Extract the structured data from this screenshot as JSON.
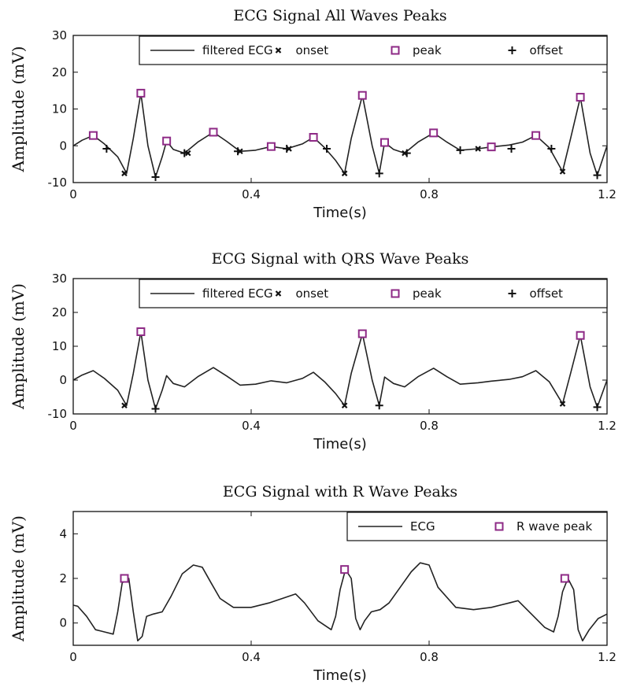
{
  "chart_data": [
    {
      "type": "line",
      "title": "ECG Signal All Waves Peaks",
      "xlabel": "Time(s)",
      "ylabel": "Amplitude (mV)",
      "xlim": [
        0,
        1.2
      ],
      "ylim": [
        -10,
        30
      ],
      "xticks": [
        "0",
        "0.4",
        "0.8",
        "1.2"
      ],
      "yticks": [
        "-10",
        "0",
        "10",
        "20",
        "30"
      ],
      "legend_position": "top-right",
      "legend": [
        "filtered ECG",
        "onset",
        "peak",
        "offset"
      ],
      "series": [
        {
          "name": "filtered ECG",
          "x": [
            0,
            0.02,
            0.045,
            0.07,
            0.1,
            0.12,
            0.135,
            0.152,
            0.168,
            0.185,
            0.2,
            0.21,
            0.225,
            0.25,
            0.28,
            0.315,
            0.345,
            0.375,
            0.41,
            0.445,
            0.48,
            0.515,
            0.54,
            0.565,
            0.59,
            0.61,
            0.625,
            0.65,
            0.672,
            0.688,
            0.7,
            0.72,
            0.745,
            0.775,
            0.81,
            0.84,
            0.87,
            0.91,
            0.94,
            0.98,
            1.01,
            1.04,
            1.07,
            1.1,
            1.118,
            1.14,
            1.162,
            1.178,
            1.2
          ],
          "y": [
            0,
            1.5,
            2.8,
            0.5,
            -3,
            -7.5,
            2,
            14.3,
            0,
            -8.5,
            -3,
            1.3,
            -1,
            -2,
            1,
            3.7,
            1.2,
            -1.5,
            -1.2,
            -0.2,
            -0.8,
            0.5,
            2.3,
            -0.5,
            -4,
            -7.5,
            2,
            13.7,
            0,
            -7.5,
            0.9,
            -1,
            -2,
            1,
            3.5,
            1,
            -1.2,
            -0.8,
            -0.3,
            0.2,
            1,
            2.8,
            -0.5,
            -7,
            2,
            13.2,
            -2,
            -8,
            0
          ]
        },
        {
          "name": "onset",
          "x": [
            0.115,
            0.258,
            0.375,
            0.485,
            0.61,
            0.745,
            0.91,
            1.1
          ],
          "y": [
            -7.5,
            -2,
            -1.5,
            -0.8,
            -7.5,
            -2,
            -0.8,
            -7
          ]
        },
        {
          "name": "peak",
          "x": [
            0.045,
            0.152,
            0.21,
            0.315,
            0.445,
            0.54,
            0.65,
            0.7,
            0.81,
            0.94,
            1.04,
            1.14
          ],
          "y": [
            2.8,
            14.3,
            1.3,
            3.7,
            -0.2,
            2.3,
            13.7,
            0.9,
            3.5,
            -0.3,
            2.8,
            13.2
          ]
        },
        {
          "name": "offset",
          "x": [
            0.075,
            0.185,
            0.25,
            0.37,
            0.48,
            0.57,
            0.688,
            0.75,
            0.87,
            0.985,
            1.075,
            1.178
          ],
          "y": [
            -0.8,
            -8.5,
            -2,
            -1.5,
            -0.8,
            -0.8,
            -7.5,
            -2,
            -1.2,
            -0.8,
            -0.8,
            -8
          ]
        }
      ]
    },
    {
      "type": "line",
      "title": "ECG Signal with QRS Wave Peaks",
      "xlabel": "Time(s)",
      "ylabel": "Amplitude (mV)",
      "xlim": [
        0,
        1.2
      ],
      "ylim": [
        -10,
        30
      ],
      "xticks": [
        "0",
        "0.4",
        "0.8",
        "1.2"
      ],
      "yticks": [
        "-10",
        "0",
        "10",
        "20",
        "30"
      ],
      "legend_position": "top-right",
      "legend": [
        "filtered ECG",
        "onset",
        "peak",
        "offset"
      ],
      "series": [
        {
          "name": "filtered ECG",
          "x": [
            0,
            0.02,
            0.045,
            0.07,
            0.1,
            0.12,
            0.135,
            0.152,
            0.168,
            0.185,
            0.2,
            0.21,
            0.225,
            0.25,
            0.28,
            0.315,
            0.345,
            0.375,
            0.41,
            0.445,
            0.48,
            0.515,
            0.54,
            0.565,
            0.59,
            0.61,
            0.625,
            0.65,
            0.672,
            0.688,
            0.7,
            0.72,
            0.745,
            0.775,
            0.81,
            0.84,
            0.87,
            0.91,
            0.94,
            0.98,
            1.01,
            1.04,
            1.07,
            1.1,
            1.118,
            1.14,
            1.162,
            1.178,
            1.2
          ],
          "y": [
            0,
            1.5,
            2.8,
            0.5,
            -3,
            -7.5,
            2,
            14.3,
            0,
            -8.5,
            -3,
            1.3,
            -1,
            -2,
            1,
            3.7,
            1.2,
            -1.5,
            -1.2,
            -0.2,
            -0.8,
            0.5,
            2.3,
            -0.5,
            -4,
            -7.5,
            2,
            13.7,
            0,
            -7.5,
            0.9,
            -1,
            -2,
            1,
            3.5,
            1,
            -1.2,
            -0.8,
            -0.3,
            0.2,
            1,
            2.8,
            -0.5,
            -7,
            2,
            13.2,
            -2,
            -8,
            0
          ]
        },
        {
          "name": "onset",
          "x": [
            0.115,
            0.61,
            1.1
          ],
          "y": [
            -7.5,
            -7.5,
            -7
          ]
        },
        {
          "name": "peak",
          "x": [
            0.152,
            0.65,
            1.14
          ],
          "y": [
            14.3,
            13.7,
            13.2
          ]
        },
        {
          "name": "offset",
          "x": [
            0.185,
            0.688,
            1.178
          ],
          "y": [
            -8.5,
            -7.5,
            -8
          ]
        }
      ]
    },
    {
      "type": "line",
      "title": "ECG Signal with R Wave Peaks",
      "xlabel": "Time(s)",
      "ylabel": "Amplitude (mV)",
      "xlim": [
        0,
        1.2
      ],
      "ylim": [
        -1,
        5
      ],
      "xticks": [
        "0",
        "0.4",
        "0.8",
        "1.2"
      ],
      "yticks": [
        "0",
        "2",
        "4"
      ],
      "legend_position": "top-right",
      "legend": [
        "ECG",
        "R wave peak"
      ],
      "series": [
        {
          "name": "ECG",
          "x": [
            0,
            0.01,
            0.03,
            0.05,
            0.07,
            0.09,
            0.1,
            0.11,
            0.125,
            0.135,
            0.145,
            0.155,
            0.165,
            0.18,
            0.2,
            0.22,
            0.245,
            0.27,
            0.29,
            0.31,
            0.33,
            0.36,
            0.4,
            0.44,
            0.47,
            0.5,
            0.52,
            0.55,
            0.58,
            0.59,
            0.6,
            0.612,
            0.625,
            0.635,
            0.645,
            0.655,
            0.67,
            0.69,
            0.71,
            0.735,
            0.76,
            0.78,
            0.8,
            0.82,
            0.86,
            0.9,
            0.94,
            0.98,
            1.0,
            1.03,
            1.06,
            1.08,
            1.09,
            1.1,
            1.112,
            1.125,
            1.135,
            1.145,
            1.16,
            1.18,
            1.2
          ],
          "y": [
            0.8,
            0.75,
            0.3,
            -0.3,
            -0.4,
            -0.5,
            0.5,
            1.8,
            2.0,
            0.5,
            -0.8,
            -0.6,
            0.3,
            0.4,
            0.5,
            1.2,
            2.2,
            2.6,
            2.5,
            1.8,
            1.1,
            0.7,
            0.7,
            0.9,
            1.1,
            1.3,
            0.9,
            0.1,
            -0.3,
            0.3,
            1.5,
            2.4,
            2.0,
            0.2,
            -0.3,
            0.1,
            0.5,
            0.6,
            0.9,
            1.6,
            2.3,
            2.7,
            2.6,
            1.6,
            0.7,
            0.6,
            0.7,
            0.9,
            1.0,
            0.4,
            -0.2,
            -0.4,
            0.3,
            1.4,
            2.0,
            1.5,
            -0.3,
            -0.8,
            -0.3,
            0.2,
            0.4
          ]
        },
        {
          "name": "R wave peak",
          "x": [
            0.115,
            0.61,
            1.105
          ],
          "y": [
            2.0,
            2.4,
            2.0
          ]
        }
      ]
    }
  ],
  "colors": {
    "line": "#222222",
    "peak_marker": "#8e2a86",
    "marker": "#111111"
  }
}
